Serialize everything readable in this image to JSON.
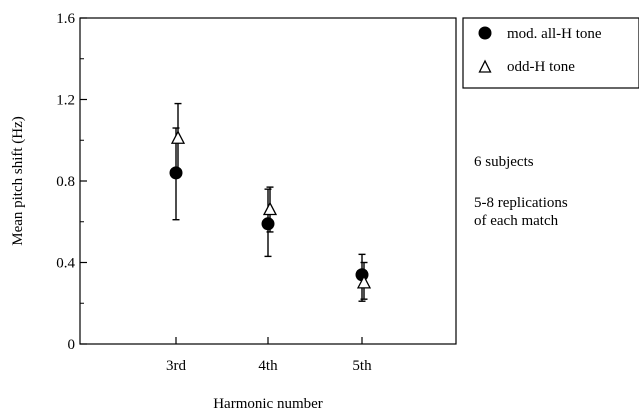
{
  "chart_data": {
    "type": "scatter",
    "xlabel": "Harmonic number",
    "ylabel": "Mean pitch shift (Hz)",
    "categories": [
      "3rd",
      "4th",
      "5th"
    ],
    "ylim": [
      0,
      1.6
    ],
    "yticks": [
      "0",
      "0.4",
      "0.8",
      "1.2",
      "1.6"
    ],
    "grid": false,
    "legend_position": "top-right outside plot",
    "series": [
      {
        "name": "mod. all-H tone",
        "marker": "filled-circle",
        "values": [
          0.84,
          0.59,
          0.34
        ],
        "error_low": [
          0.61,
          0.43,
          0.21
        ],
        "error_high": [
          1.06,
          0.76,
          0.44
        ]
      },
      {
        "name": "odd-H tone",
        "marker": "open-triangle",
        "values": [
          1.01,
          0.66,
          0.3
        ],
        "error_low": [
          0.84,
          0.55,
          0.22
        ],
        "error_high": [
          1.18,
          0.77,
          0.4
        ]
      }
    ],
    "annotations": [
      "6 subjects",
      "5-8 replications",
      "of each match"
    ]
  }
}
